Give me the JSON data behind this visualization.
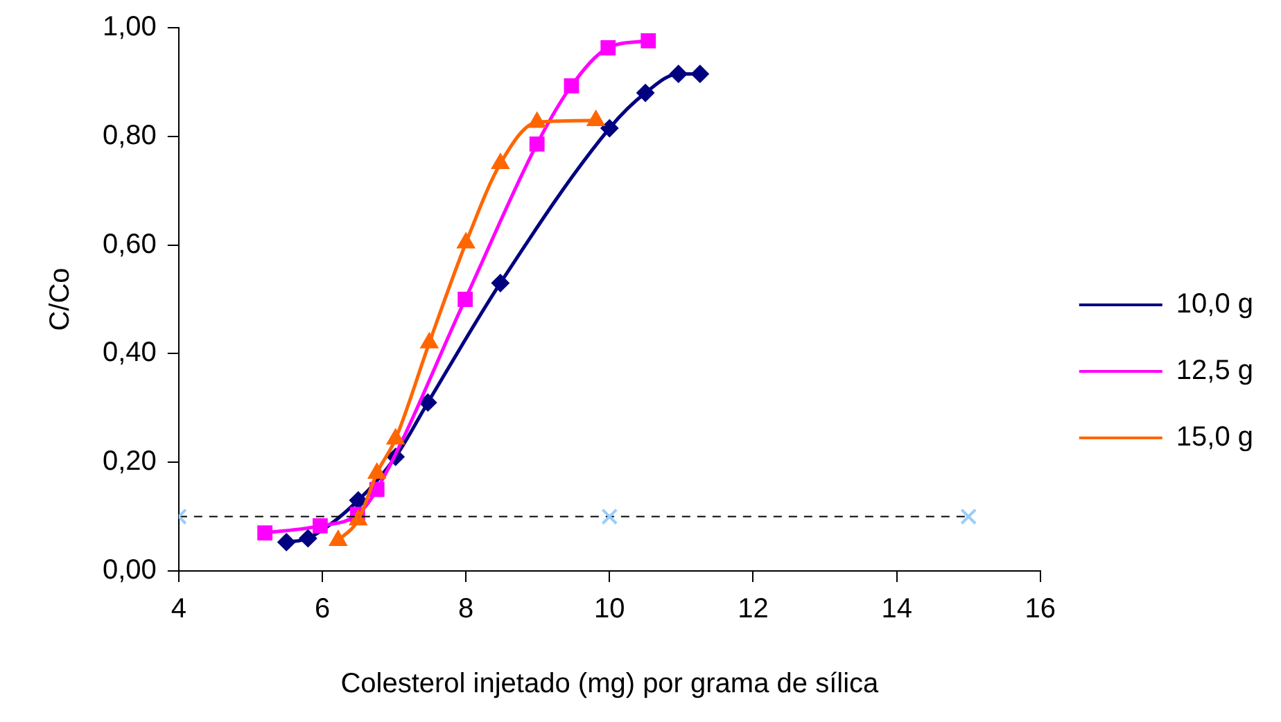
{
  "chart_data": {
    "type": "line",
    "xlabel": "Colesterol injetado (mg) por grama de sílica",
    "ylabel": "C/Co",
    "xlim": [
      4,
      16
    ],
    "xticks": [
      4,
      6,
      8,
      10,
      12,
      14,
      16
    ],
    "ylim": [
      0,
      1
    ],
    "yticks": [
      {
        "value": 0,
        "label": "0,00"
      },
      {
        "value": 0.2,
        "label": "0,20"
      },
      {
        "value": 0.4,
        "label": "0,40"
      },
      {
        "value": 0.6,
        "label": "0,60"
      },
      {
        "value": 0.8,
        "label": "0,80"
      },
      {
        "value": 1,
        "label": "1,00"
      }
    ],
    "grid": false,
    "legend": "right",
    "series": [
      {
        "name": "10,0 g",
        "color": "#000080",
        "marker": "diamond",
        "x": [
          5.5,
          5.8,
          6.5,
          7.02,
          7.47,
          8.48,
          10.0,
          10.5,
          10.96,
          11.26
        ],
        "values": [
          0.053,
          0.06,
          0.13,
          0.21,
          0.31,
          0.53,
          0.815,
          0.88,
          0.915,
          0.915
        ]
      },
      {
        "name": "12,5 g",
        "color": "#ff00ff",
        "marker": "square",
        "x": [
          5.2,
          5.97,
          6.49,
          6.76,
          7.99,
          8.99,
          9.47,
          9.98,
          10.54
        ],
        "values": [
          0.07,
          0.083,
          0.104,
          0.15,
          0.5,
          0.786,
          0.893,
          0.963,
          0.976
        ]
      },
      {
        "name": "15,0 g",
        "color": "#ff6600",
        "marker": "triangle",
        "x": [
          6.22,
          6.5,
          6.76,
          7.02,
          7.49,
          8.0,
          8.48,
          8.99,
          9.81
        ],
        "values": [
          0.056,
          0.094,
          0.18,
          0.243,
          0.42,
          0.604,
          0.75,
          0.826,
          0.829
        ]
      },
      {
        "color": "#99ccff",
        "marker": "cross",
        "line_style": "dashed",
        "x": [
          4,
          10,
          15
        ],
        "values": [
          0.1,
          0.1,
          0.1
        ]
      }
    ]
  }
}
